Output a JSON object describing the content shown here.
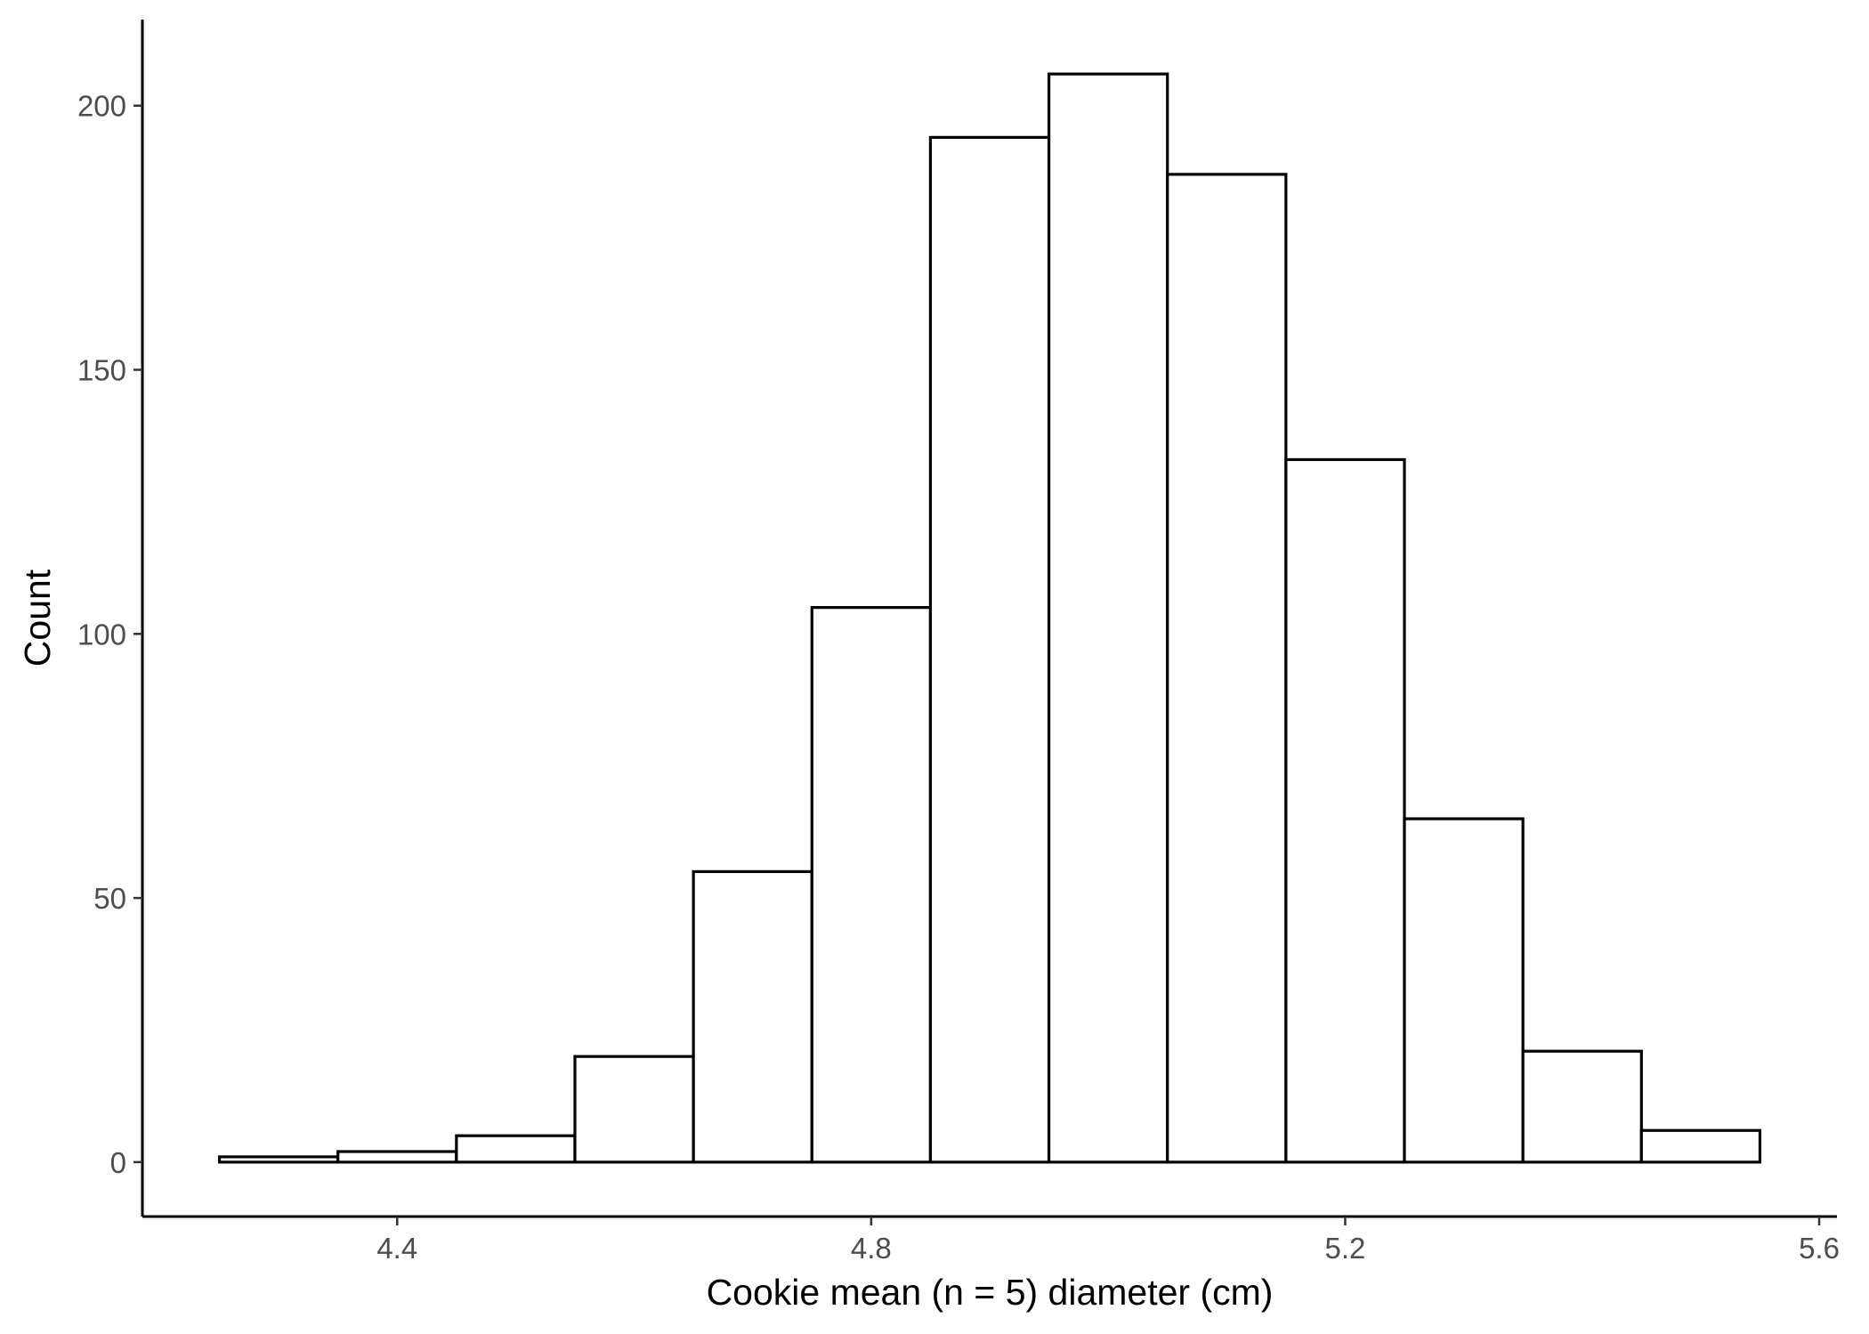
{
  "chart_data": {
    "type": "bar",
    "subtype": "histogram",
    "title": "",
    "xlabel": "Cookie mean (n = 5) diameter (cm)",
    "ylabel": "Count",
    "bin_width": 0.1,
    "bins": [
      {
        "x_start": 4.25,
        "x_end": 4.35,
        "count": 1
      },
      {
        "x_start": 4.35,
        "x_end": 4.45,
        "count": 2
      },
      {
        "x_start": 4.45,
        "x_end": 4.55,
        "count": 5
      },
      {
        "x_start": 4.55,
        "x_end": 4.65,
        "count": 20
      },
      {
        "x_start": 4.65,
        "x_end": 4.75,
        "count": 55
      },
      {
        "x_start": 4.75,
        "x_end": 4.85,
        "count": 105
      },
      {
        "x_start": 4.85,
        "x_end": 4.95,
        "count": 194
      },
      {
        "x_start": 4.95,
        "x_end": 5.05,
        "count": 206
      },
      {
        "x_start": 5.05,
        "x_end": 5.15,
        "count": 187
      },
      {
        "x_start": 5.15,
        "x_end": 5.25,
        "count": 133
      },
      {
        "x_start": 5.25,
        "x_end": 5.35,
        "count": 65
      },
      {
        "x_start": 5.35,
        "x_end": 5.45,
        "count": 21
      },
      {
        "x_start": 5.45,
        "x_end": 5.55,
        "count": 6
      }
    ],
    "xlim": [
      4.185,
      5.615
    ],
    "ylim": [
      -10.3,
      216.3
    ],
    "x_ticks": [
      4.4,
      4.8,
      5.2,
      5.6
    ],
    "x_tick_labels": [
      "4.4",
      "4.8",
      "5.2",
      "5.6"
    ],
    "y_ticks": [
      0,
      50,
      100,
      150,
      200
    ],
    "y_tick_labels": [
      "0",
      "50",
      "100",
      "150",
      "200"
    ],
    "grid": false,
    "legend": "none",
    "colors": {
      "bar_fill": "#ffffff",
      "bar_outline": "#000000",
      "axis": "#000000",
      "tick_text": "#4d4d4d"
    }
  }
}
